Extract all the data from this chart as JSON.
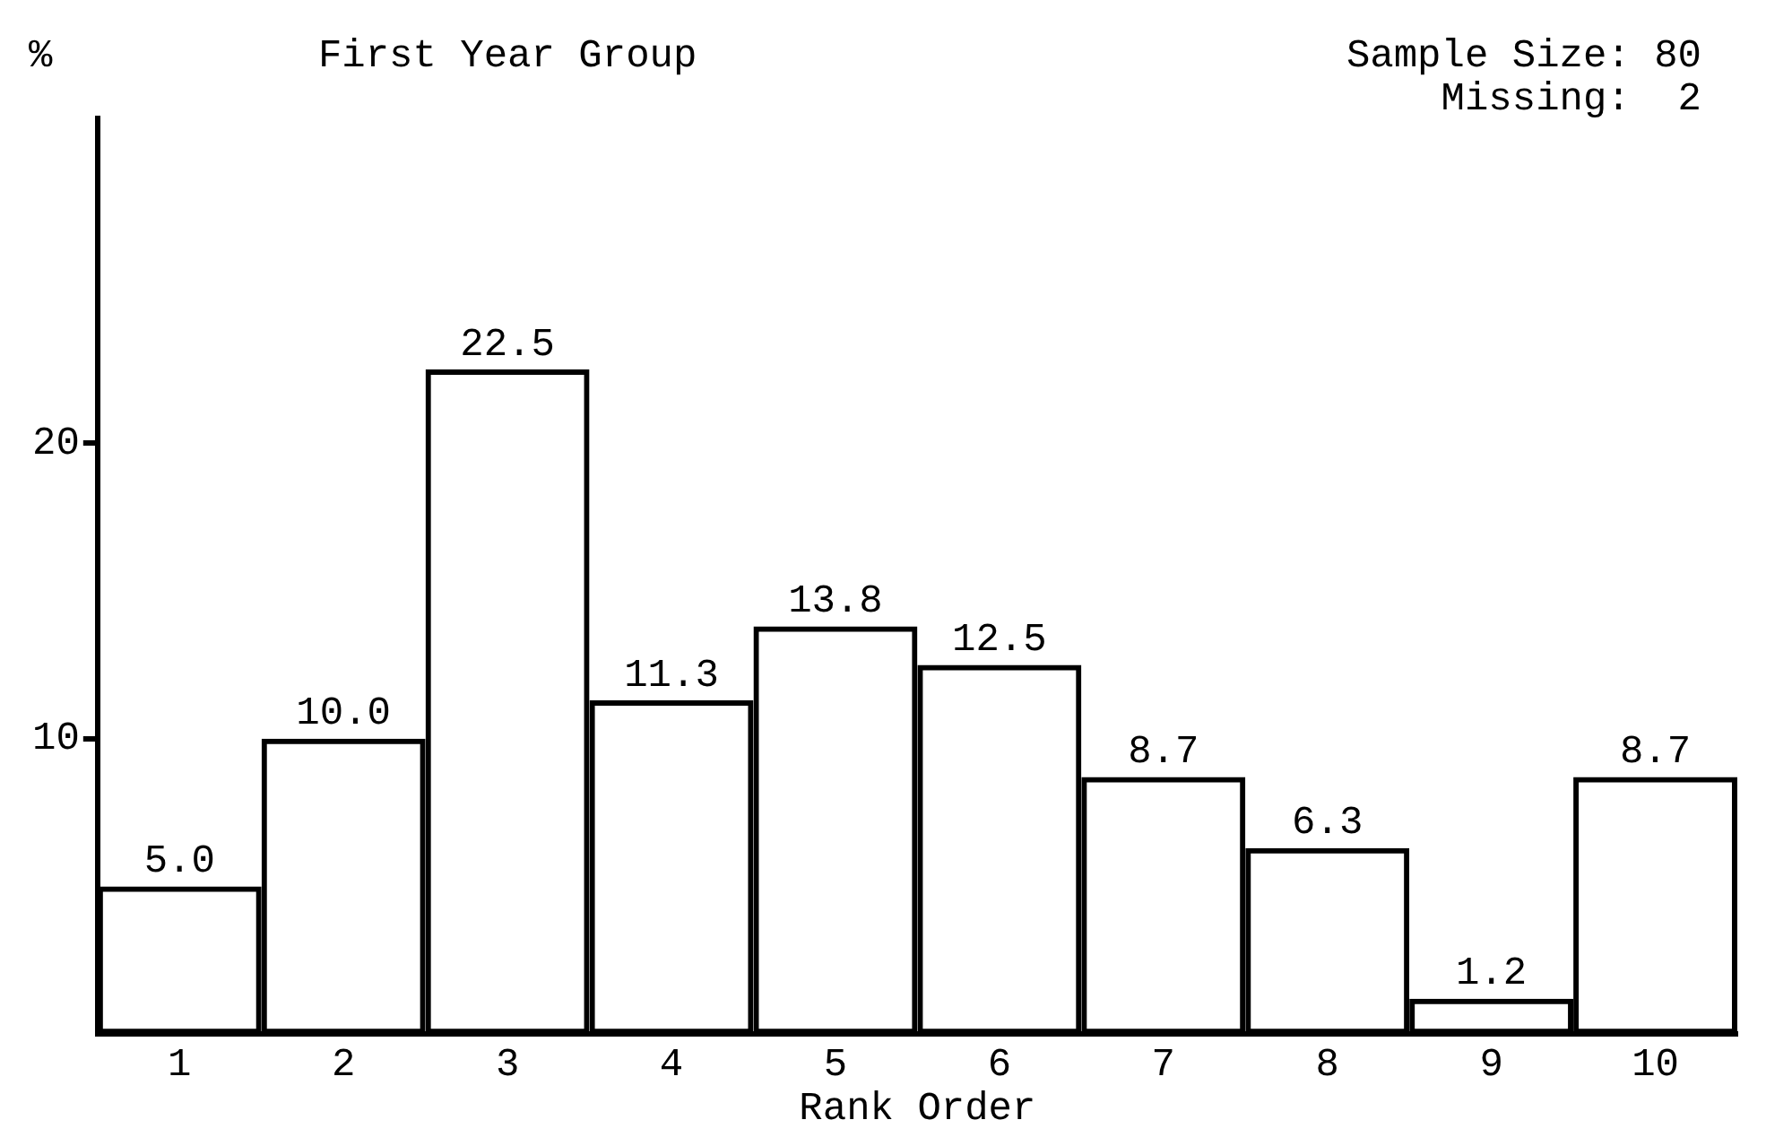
{
  "chart_data": {
    "type": "bar",
    "title": "First Year Group",
    "xlabel": "Rank Order",
    "ylabel": "%",
    "annotations": [
      "Sample Size: 80",
      "Missing:  2"
    ],
    "categories": [
      "1",
      "2",
      "3",
      "4",
      "5",
      "6",
      "7",
      "8",
      "9",
      "10"
    ],
    "values": [
      5.0,
      10.0,
      22.5,
      11.3,
      13.8,
      12.5,
      8.7,
      6.3,
      1.2,
      8.7
    ],
    "value_labels": [
      "5.0",
      "10.0",
      "22.5",
      "11.3",
      "13.8",
      "12.5",
      "8.7",
      "6.3",
      "1.2",
      "8.7"
    ],
    "color": "#000000",
    "ylim": [
      0,
      31
    ],
    "yticks": [
      10,
      20
    ],
    "grid": false,
    "legend": false
  }
}
